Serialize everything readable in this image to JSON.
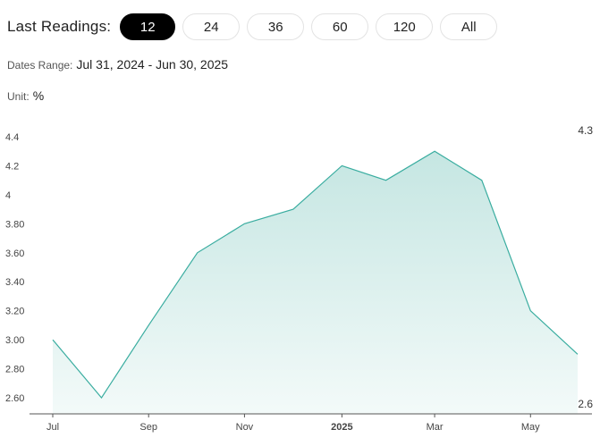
{
  "header": {
    "title": "Last Readings:",
    "options": [
      "12",
      "24",
      "36",
      "60",
      "120",
      "All"
    ],
    "active": "12"
  },
  "dates": {
    "label": "Dates Range:",
    "value": "Jul 31, 2024 - Jun 30, 2025"
  },
  "unit": {
    "label": "Unit:",
    "value": "%"
  },
  "colors": {
    "line": "#3aada0",
    "fill_top": "#c5e6e2",
    "fill_bottom": "#f3faf9",
    "axis": "#555555"
  },
  "chart_data": {
    "type": "area",
    "x": [
      "2024-07-31",
      "2024-08-31",
      "2024-09-30",
      "2024-10-31",
      "2024-11-30",
      "2024-12-31",
      "2025-01-31",
      "2025-02-28",
      "2025-03-31",
      "2025-04-30",
      "2025-05-31",
      "2025-06-30"
    ],
    "series": [
      {
        "values": [
          3.0,
          2.6,
          3.1,
          3.6,
          3.8,
          3.9,
          4.2,
          4.1,
          4.3,
          4.1,
          3.2,
          2.9
        ]
      }
    ],
    "ylim": [
      2.5,
      4.5
    ],
    "y_ticks": [
      "2.60",
      "2.80",
      "3.00",
      "3.20",
      "3.40",
      "3.60",
      "3.80",
      "4",
      "4.2",
      "4.4"
    ],
    "x_ticks": [
      "Jul",
      "Sep",
      "Nov",
      "2025",
      "Mar",
      "May"
    ],
    "bold_x_ticks": [
      "2025"
    ],
    "max_label": "4.3",
    "min_label": "2.6",
    "grid": false
  }
}
